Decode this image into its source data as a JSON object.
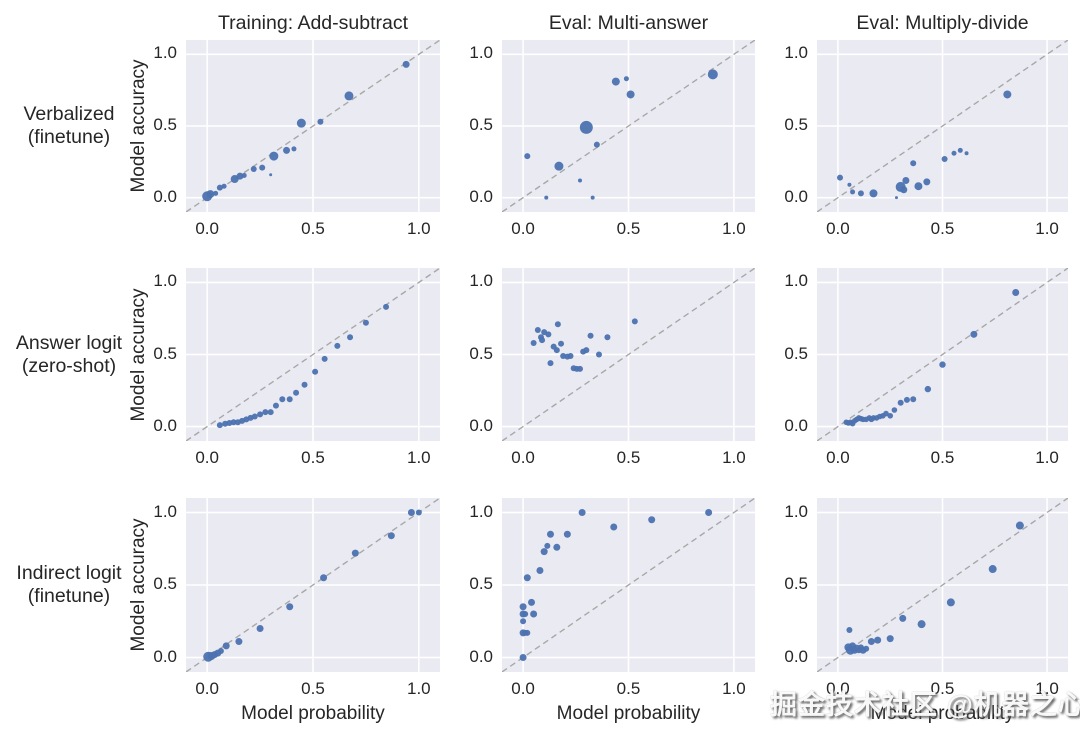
{
  "watermark": {
    "text": "掘金技术社区 @机器之心"
  },
  "chart_data": {
    "type": "scatter",
    "grid": [
      3,
      3
    ],
    "col_titles": [
      "Training: Add-subtract",
      "Eval: Multi-answer",
      "Eval: Multiply-divide"
    ],
    "row_labels": [
      {
        "line1": "Verbalized",
        "line2": "(finetune)"
      },
      {
        "line1": "Answer logit",
        "line2": "(zero-shot)"
      },
      {
        "line1": "Indirect logit",
        "line2": "(finetune)"
      }
    ],
    "xlabel": "Model probability",
    "ylabel": "Model accuracy",
    "x_ticks": [
      "0.0",
      "0.5",
      "1.0"
    ],
    "y_ticks": [
      "0.0",
      "0.5",
      "1.0"
    ],
    "tick_values": [
      0,
      0.5,
      1
    ],
    "axis_range": [
      -0.1,
      1.1
    ],
    "identity_line": true,
    "grid_on": true,
    "colors": {
      "point": "#4c72b0",
      "plot_bg": "#eaeaf2",
      "grid": "#ffffff",
      "diagonal": "#a8a8a8",
      "text": "#262626"
    },
    "point_format": "[model_probability, model_accuracy, radius_px]",
    "subplots": [
      [
        {
          "row": "Verbalized (finetune)",
          "col": "Training: Add-subtract",
          "points": [
            [
              0.0,
              0.01,
              5
            ],
            [
              0.015,
              0.025,
              4
            ],
            [
              0.04,
              0.03,
              2.5
            ],
            [
              0.06,
              0.07,
              3
            ],
            [
              0.08,
              0.08,
              2.5
            ],
            [
              0.13,
              0.13,
              4
            ],
            [
              0.155,
              0.15,
              3.5
            ],
            [
              0.175,
              0.155,
              2.5
            ],
            [
              0.22,
              0.2,
              3
            ],
            [
              0.26,
              0.21,
              3
            ],
            [
              0.3,
              0.16,
              1.5
            ],
            [
              0.315,
              0.29,
              4.5
            ],
            [
              0.375,
              0.33,
              3.5
            ],
            [
              0.41,
              0.34,
              2.5
            ],
            [
              0.445,
              0.52,
              4.5
            ],
            [
              0.535,
              0.53,
              3
            ],
            [
              0.67,
              0.71,
              4.5
            ],
            [
              0.94,
              0.93,
              3.5
            ]
          ]
        },
        {
          "row": "Verbalized (finetune)",
          "col": "Eval: Multi-answer",
          "points": [
            [
              0.02,
              0.29,
              3
            ],
            [
              0.11,
              0.0,
              2
            ],
            [
              0.17,
              0.22,
              4.5
            ],
            [
              0.27,
              0.12,
              2
            ],
            [
              0.3,
              0.49,
              6.5
            ],
            [
              0.33,
              0.0,
              2
            ],
            [
              0.35,
              0.37,
              3
            ],
            [
              0.44,
              0.81,
              4
            ],
            [
              0.49,
              0.83,
              2.5
            ],
            [
              0.51,
              0.72,
              4
            ],
            [
              0.9,
              0.86,
              5
            ]
          ]
        },
        {
          "row": "Verbalized (finetune)",
          "col": "Eval: Multiply-divide",
          "points": [
            [
              0.01,
              0.14,
              3
            ],
            [
              0.055,
              0.09,
              2
            ],
            [
              0.07,
              0.04,
              2.5
            ],
            [
              0.11,
              0.03,
              3
            ],
            [
              0.17,
              0.03,
              4
            ],
            [
              0.28,
              0.0,
              1.5
            ],
            [
              0.3,
              0.075,
              5
            ],
            [
              0.315,
              0.055,
              3.5
            ],
            [
              0.325,
              0.12,
              3.5
            ],
            [
              0.36,
              0.24,
              3
            ],
            [
              0.385,
              0.08,
              4
            ],
            [
              0.425,
              0.11,
              3.5
            ],
            [
              0.51,
              0.27,
              3
            ],
            [
              0.555,
              0.31,
              2.5
            ],
            [
              0.585,
              0.33,
              2.5
            ],
            [
              0.615,
              0.31,
              2
            ],
            [
              0.81,
              0.72,
              4
            ]
          ]
        }
      ],
      [
        {
          "row": "Answer logit (zero-shot)",
          "col": "Training: Add-subtract",
          "points": [
            [
              0.06,
              0.01,
              3
            ],
            [
              0.085,
              0.02,
              3
            ],
            [
              0.105,
              0.025,
              3
            ],
            [
              0.125,
              0.03,
              3
            ],
            [
              0.145,
              0.03,
              3
            ],
            [
              0.165,
              0.04,
              3
            ],
            [
              0.185,
              0.05,
              3
            ],
            [
              0.205,
              0.06,
              3
            ],
            [
              0.225,
              0.07,
              3
            ],
            [
              0.25,
              0.085,
              3
            ],
            [
              0.275,
              0.1,
              3
            ],
            [
              0.3,
              0.1,
              3
            ],
            [
              0.325,
              0.145,
              3
            ],
            [
              0.355,
              0.19,
              3
            ],
            [
              0.39,
              0.19,
              3
            ],
            [
              0.42,
              0.235,
              3
            ],
            [
              0.46,
              0.29,
              3
            ],
            [
              0.51,
              0.38,
              3
            ],
            [
              0.555,
              0.47,
              3
            ],
            [
              0.615,
              0.56,
              3
            ],
            [
              0.675,
              0.62,
              3
            ],
            [
              0.75,
              0.72,
              3
            ],
            [
              0.845,
              0.83,
              3
            ]
          ]
        },
        {
          "row": "Answer logit (zero-shot)",
          "col": "Eval: Multi-answer",
          "points": [
            [
              0.05,
              0.58,
              3
            ],
            [
              0.07,
              0.67,
              3
            ],
            [
              0.085,
              0.62,
              3
            ],
            [
              0.09,
              0.6,
              3
            ],
            [
              0.1,
              0.655,
              3
            ],
            [
              0.12,
              0.64,
              3
            ],
            [
              0.13,
              0.44,
              3
            ],
            [
              0.145,
              0.555,
              3
            ],
            [
              0.16,
              0.53,
              3
            ],
            [
              0.165,
              0.71,
              3
            ],
            [
              0.18,
              0.575,
              3
            ],
            [
              0.19,
              0.49,
              3
            ],
            [
              0.21,
              0.485,
              3
            ],
            [
              0.225,
              0.49,
              3
            ],
            [
              0.24,
              0.405,
              3
            ],
            [
              0.255,
              0.4,
              3
            ],
            [
              0.27,
              0.4,
              3
            ],
            [
              0.285,
              0.52,
              3
            ],
            [
              0.3,
              0.53,
              3
            ],
            [
              0.32,
              0.63,
              3
            ],
            [
              0.36,
              0.5,
              3
            ],
            [
              0.4,
              0.62,
              3
            ],
            [
              0.53,
              0.73,
              3
            ]
          ]
        },
        {
          "row": "Answer logit (zero-shot)",
          "col": "Eval: Multiply-divide",
          "points": [
            [
              0.04,
              0.03,
              2.8
            ],
            [
              0.05,
              0.025,
              2.8
            ],
            [
              0.06,
              0.03,
              2.8
            ],
            [
              0.07,
              0.02,
              2.8
            ],
            [
              0.08,
              0.04,
              2.8
            ],
            [
              0.09,
              0.05,
              2.8
            ],
            [
              0.1,
              0.06,
              2.8
            ],
            [
              0.11,
              0.055,
              2.8
            ],
            [
              0.12,
              0.05,
              2.8
            ],
            [
              0.135,
              0.05,
              2.8
            ],
            [
              0.15,
              0.06,
              2.8
            ],
            [
              0.16,
              0.05,
              2.8
            ],
            [
              0.17,
              0.06,
              2.8
            ],
            [
              0.185,
              0.06,
              2.8
            ],
            [
              0.2,
              0.07,
              2.8
            ],
            [
              0.215,
              0.075,
              2.8
            ],
            [
              0.23,
              0.09,
              2.8
            ],
            [
              0.25,
              0.075,
              2.8
            ],
            [
              0.27,
              0.115,
              2.8
            ],
            [
              0.3,
              0.165,
              3
            ],
            [
              0.33,
              0.185,
              3
            ],
            [
              0.36,
              0.19,
              3
            ],
            [
              0.43,
              0.26,
              3.2
            ],
            [
              0.5,
              0.43,
              3.2
            ],
            [
              0.65,
              0.64,
              3.5
            ],
            [
              0.85,
              0.93,
              3.5
            ]
          ]
        }
      ],
      [
        {
          "row": "Indirect logit (finetune)",
          "col": "Training: Add-subtract",
          "points": [
            [
              0.005,
              0.005,
              5
            ],
            [
              0.02,
              0.01,
              4
            ],
            [
              0.035,
              0.02,
              3.5
            ],
            [
              0.05,
              0.03,
              3.5
            ],
            [
              0.065,
              0.045,
              3
            ],
            [
              0.09,
              0.08,
              3.5
            ],
            [
              0.15,
              0.11,
              3.5
            ],
            [
              0.25,
              0.2,
              3.5
            ],
            [
              0.39,
              0.35,
              3.5
            ],
            [
              0.55,
              0.55,
              3.5
            ],
            [
              0.7,
              0.72,
              3.5
            ],
            [
              0.87,
              0.84,
              3.5
            ],
            [
              0.965,
              1.0,
              3.5
            ],
            [
              1.0,
              1.0,
              3
            ]
          ]
        },
        {
          "row": "Indirect logit (finetune)",
          "col": "Eval: Multi-answer",
          "points": [
            [
              0.0,
              0.0,
              3.5
            ],
            [
              0.0,
              0.17,
              3.5
            ],
            [
              0.01,
              0.17,
              3
            ],
            [
              0.02,
              0.17,
              3
            ],
            [
              0.0,
              0.25,
              3
            ],
            [
              0.0,
              0.3,
              3.5
            ],
            [
              0.01,
              0.3,
              3
            ],
            [
              0.0,
              0.35,
              3.5
            ],
            [
              0.05,
              0.3,
              3.5
            ],
            [
              0.04,
              0.38,
              3.5
            ],
            [
              0.02,
              0.55,
              3.5
            ],
            [
              0.08,
              0.6,
              3.5
            ],
            [
              0.1,
              0.73,
              3.5
            ],
            [
              0.115,
              0.77,
              3
            ],
            [
              0.13,
              0.85,
              3.5
            ],
            [
              0.16,
              0.76,
              3.5
            ],
            [
              0.21,
              0.85,
              3.5
            ],
            [
              0.28,
              1.0,
              3.5
            ],
            [
              0.43,
              0.9,
              3.5
            ],
            [
              0.61,
              0.95,
              3.5
            ],
            [
              0.88,
              1.0,
              3.5
            ]
          ]
        },
        {
          "row": "Indirect logit (finetune)",
          "col": "Eval: Multiply-divide",
          "points": [
            [
              0.055,
              0.19,
              3
            ],
            [
              0.05,
              0.07,
              4
            ],
            [
              0.06,
              0.05,
              4.5
            ],
            [
              0.07,
              0.08,
              3.5
            ],
            [
              0.08,
              0.05,
              3.5
            ],
            [
              0.09,
              0.065,
              3.5
            ],
            [
              0.1,
              0.05,
              3
            ],
            [
              0.11,
              0.07,
              3
            ],
            [
              0.12,
              0.05,
              3.5
            ],
            [
              0.135,
              0.06,
              3
            ],
            [
              0.16,
              0.11,
              3.5
            ],
            [
              0.19,
              0.12,
              3.5
            ],
            [
              0.25,
              0.13,
              3.5
            ],
            [
              0.31,
              0.27,
              3.5
            ],
            [
              0.4,
              0.23,
              4
            ],
            [
              0.54,
              0.38,
              4
            ],
            [
              0.74,
              0.61,
              4
            ],
            [
              0.87,
              0.91,
              4
            ]
          ]
        }
      ]
    ]
  }
}
